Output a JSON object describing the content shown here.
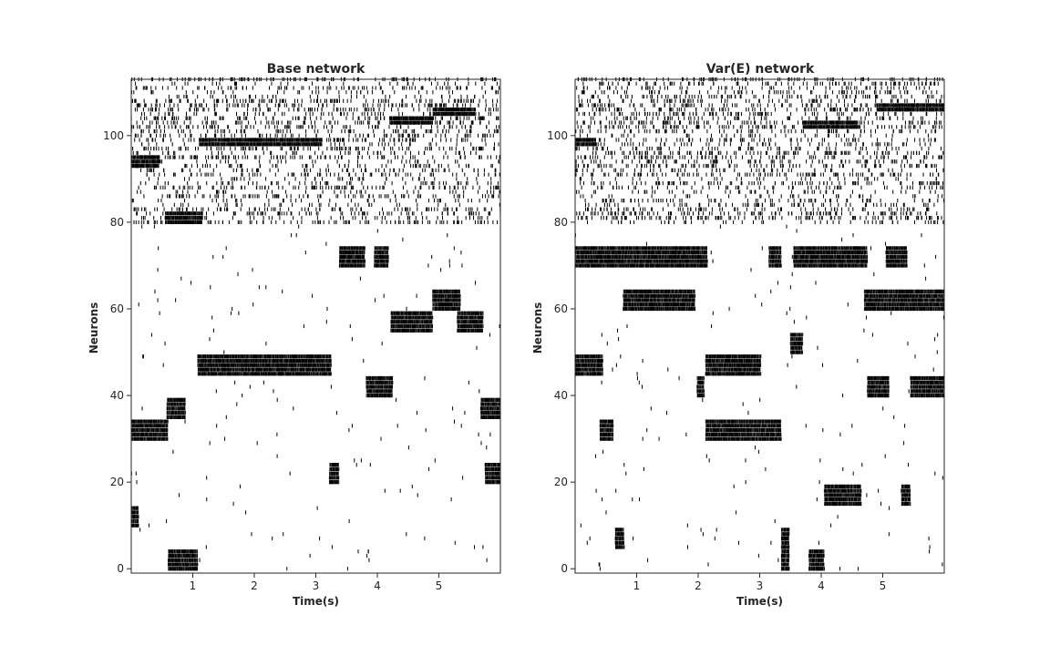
{
  "chart_data": [
    {
      "type": "raster",
      "title": "Base network",
      "xlabel": "Time(s)",
      "ylabel": "Neurons",
      "xlim": [
        0,
        6
      ],
      "ylim": [
        -1,
        113
      ],
      "xticks": [
        1,
        2,
        3,
        4,
        5
      ],
      "yticks": [
        0,
        20,
        40,
        60,
        80,
        100
      ],
      "grid": false,
      "spike_color": "#000000",
      "dense_blocks": [
        {
          "neurons": [
            30,
            34
          ],
          "t": [
            0.0,
            0.6
          ]
        },
        {
          "neurons": [
            10,
            14
          ],
          "t": [
            0.0,
            0.12
          ]
        },
        {
          "neurons": [
            0,
            4
          ],
          "t": [
            0.6,
            1.08
          ]
        },
        {
          "neurons": [
            35,
            39
          ],
          "t": [
            0.58,
            0.88
          ]
        },
        {
          "neurons": [
            45,
            49
          ],
          "t": [
            1.08,
            3.25
          ]
        },
        {
          "neurons": [
            20,
            24
          ],
          "t": [
            3.22,
            3.38
          ]
        },
        {
          "neurons": [
            70,
            74
          ],
          "t": [
            3.38,
            3.8
          ]
        },
        {
          "neurons": [
            70,
            74
          ],
          "t": [
            3.95,
            4.18
          ]
        },
        {
          "neurons": [
            40,
            44
          ],
          "t": [
            3.82,
            4.25
          ]
        },
        {
          "neurons": [
            55,
            59
          ],
          "t": [
            4.22,
            4.9
          ]
        },
        {
          "neurons": [
            60,
            64
          ],
          "t": [
            4.9,
            5.35
          ]
        },
        {
          "neurons": [
            55,
            59
          ],
          "t": [
            5.3,
            5.72
          ]
        },
        {
          "neurons": [
            35,
            39
          ],
          "t": [
            5.68,
            6.0
          ]
        },
        {
          "neurons": [
            20,
            24
          ],
          "t": [
            5.75,
            6.0
          ]
        },
        {
          "neurons": [
            80,
            82
          ],
          "t": [
            0.55,
            1.15
          ]
        },
        {
          "neurons": [
            98,
            99
          ],
          "t": [
            1.1,
            3.1
          ]
        },
        {
          "neurons": [
            103,
            104
          ],
          "t": [
            4.2,
            4.9
          ]
        },
        {
          "neurons": [
            105,
            106
          ],
          "t": [
            4.9,
            5.6
          ]
        },
        {
          "neurons": [
            93,
            95
          ],
          "t": [
            0.0,
            0.45
          ]
        }
      ],
      "sparse_regions": [
        {
          "neurons": [
            80,
            113
          ],
          "t": [
            0.0,
            6.0
          ],
          "density": "high"
        },
        {
          "neurons": [
            0,
            79
          ],
          "t": [
            0.0,
            6.0
          ],
          "density": "low"
        }
      ]
    },
    {
      "type": "raster",
      "title": "Var(E) network",
      "xlabel": "Time(s)",
      "ylabel": "Neurons",
      "xlim": [
        0,
        6
      ],
      "ylim": [
        -1,
        113
      ],
      "xticks": [
        1,
        2,
        3,
        4,
        5
      ],
      "yticks": [
        0,
        20,
        40,
        60,
        80,
        100
      ],
      "grid": false,
      "spike_color": "#000000",
      "dense_blocks": [
        {
          "neurons": [
            70,
            74
          ],
          "t": [
            0.0,
            2.15
          ]
        },
        {
          "neurons": [
            70,
            74
          ],
          "t": [
            3.15,
            3.35
          ]
        },
        {
          "neurons": [
            70,
            74
          ],
          "t": [
            3.55,
            4.75
          ]
        },
        {
          "neurons": [
            70,
            74
          ],
          "t": [
            5.05,
            5.4
          ]
        },
        {
          "neurons": [
            60,
            64
          ],
          "t": [
            0.78,
            1.95
          ]
        },
        {
          "neurons": [
            60,
            64
          ],
          "t": [
            4.7,
            6.0
          ]
        },
        {
          "neurons": [
            45,
            49
          ],
          "t": [
            0.0,
            0.45
          ]
        },
        {
          "neurons": [
            45,
            49
          ],
          "t": [
            2.12,
            3.02
          ]
        },
        {
          "neurons": [
            40,
            44
          ],
          "t": [
            1.98,
            2.1
          ]
        },
        {
          "neurons": [
            40,
            44
          ],
          "t": [
            4.75,
            5.1
          ]
        },
        {
          "neurons": [
            40,
            44
          ],
          "t": [
            5.45,
            6.0
          ]
        },
        {
          "neurons": [
            30,
            34
          ],
          "t": [
            0.4,
            0.62
          ]
        },
        {
          "neurons": [
            30,
            34
          ],
          "t": [
            2.12,
            3.35
          ]
        },
        {
          "neurons": [
            15,
            19
          ],
          "t": [
            4.05,
            4.65
          ]
        },
        {
          "neurons": [
            15,
            19
          ],
          "t": [
            5.3,
            5.45
          ]
        },
        {
          "neurons": [
            5,
            9
          ],
          "t": [
            0.65,
            0.8
          ]
        },
        {
          "neurons": [
            0,
            4
          ],
          "t": [
            3.8,
            4.05
          ]
        },
        {
          "neurons": [
            0,
            9
          ],
          "t": [
            3.35,
            3.48
          ]
        },
        {
          "neurons": [
            50,
            54
          ],
          "t": [
            3.5,
            3.7
          ]
        },
        {
          "neurons": [
            102,
            103
          ],
          "t": [
            3.7,
            4.6
          ]
        },
        {
          "neurons": [
            106,
            107
          ],
          "t": [
            4.9,
            6.0
          ]
        },
        {
          "neurons": [
            98,
            99
          ],
          "t": [
            0.0,
            0.35
          ]
        }
      ],
      "sparse_regions": [
        {
          "neurons": [
            80,
            113
          ],
          "t": [
            0.0,
            6.0
          ],
          "density": "high"
        },
        {
          "neurons": [
            0,
            79
          ],
          "t": [
            0.0,
            6.0
          ],
          "density": "low"
        }
      ]
    }
  ]
}
